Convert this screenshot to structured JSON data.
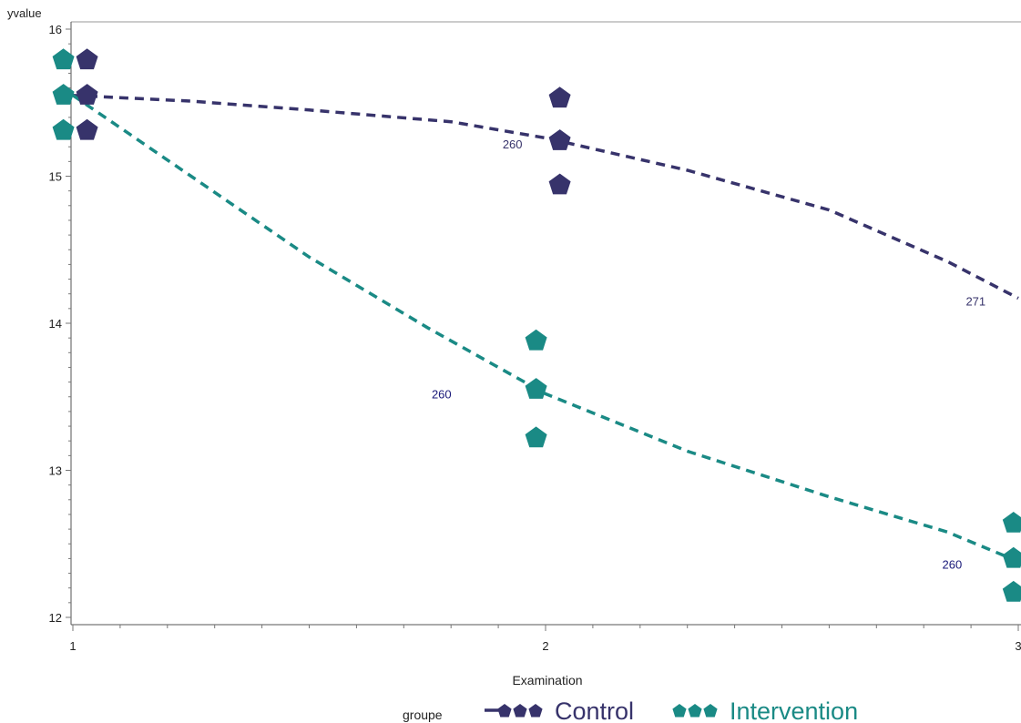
{
  "chart_data": {
    "type": "scatter",
    "title": "",
    "xlabel": "Examination",
    "ylabel": "yvalue",
    "xlim": [
      1,
      3
    ],
    "ylim": [
      12,
      16
    ],
    "x_ticks": [
      1,
      2,
      3
    ],
    "y_ticks": [
      12,
      13,
      14,
      15,
      16
    ],
    "grid": false,
    "legend_title": "groupe",
    "legend_position": "bottom",
    "series": [
      {
        "name": "Control",
        "color": "#37336b",
        "marker": "pentagon",
        "points": [
          {
            "x": 1.03,
            "y": 15.79
          },
          {
            "x": 1.03,
            "y": 15.55
          },
          {
            "x": 1.03,
            "y": 15.31
          },
          {
            "x": 2.03,
            "y": 15.53
          },
          {
            "x": 2.03,
            "y": 15.24
          },
          {
            "x": 2.03,
            "y": 14.94
          },
          {
            "x": 3.0,
            "y": 14.17
          }
        ],
        "curve": [
          {
            "x": 1.0,
            "y": 15.55
          },
          {
            "x": 1.25,
            "y": 15.51
          },
          {
            "x": 1.5,
            "y": 15.45
          },
          {
            "x": 1.8,
            "y": 15.37
          },
          {
            "x": 2.0,
            "y": 15.26
          },
          {
            "x": 2.3,
            "y": 15.04
          },
          {
            "x": 2.6,
            "y": 14.77
          },
          {
            "x": 2.85,
            "y": 14.42
          },
          {
            "x": 3.0,
            "y": 14.17
          }
        ],
        "annotations": [
          {
            "x": 1.93,
            "y": 15.19,
            "text": "260"
          },
          {
            "x": 2.91,
            "y": 14.12,
            "text": "271"
          }
        ]
      },
      {
        "name": "Intervention",
        "color": "#1a8a85",
        "marker": "pentagon",
        "points": [
          {
            "x": 0.98,
            "y": 15.79
          },
          {
            "x": 0.98,
            "y": 15.55
          },
          {
            "x": 0.98,
            "y": 15.31
          },
          {
            "x": 1.98,
            "y": 13.88
          },
          {
            "x": 1.98,
            "y": 13.55
          },
          {
            "x": 1.98,
            "y": 13.22
          },
          {
            "x": 2.99,
            "y": 12.64
          },
          {
            "x": 2.99,
            "y": 12.4
          },
          {
            "x": 2.99,
            "y": 12.17
          }
        ],
        "curve": [
          {
            "x": 1.0,
            "y": 15.55
          },
          {
            "x": 1.25,
            "y": 15.0
          },
          {
            "x": 1.5,
            "y": 14.45
          },
          {
            "x": 1.75,
            "y": 13.97
          },
          {
            "x": 2.0,
            "y": 13.52
          },
          {
            "x": 2.3,
            "y": 13.13
          },
          {
            "x": 2.6,
            "y": 12.82
          },
          {
            "x": 2.85,
            "y": 12.58
          },
          {
            "x": 3.0,
            "y": 12.38
          }
        ],
        "annotations": [
          {
            "x": 1.78,
            "y": 13.49,
            "text": "260"
          },
          {
            "x": 2.86,
            "y": 12.33,
            "text": "260"
          }
        ]
      }
    ]
  }
}
